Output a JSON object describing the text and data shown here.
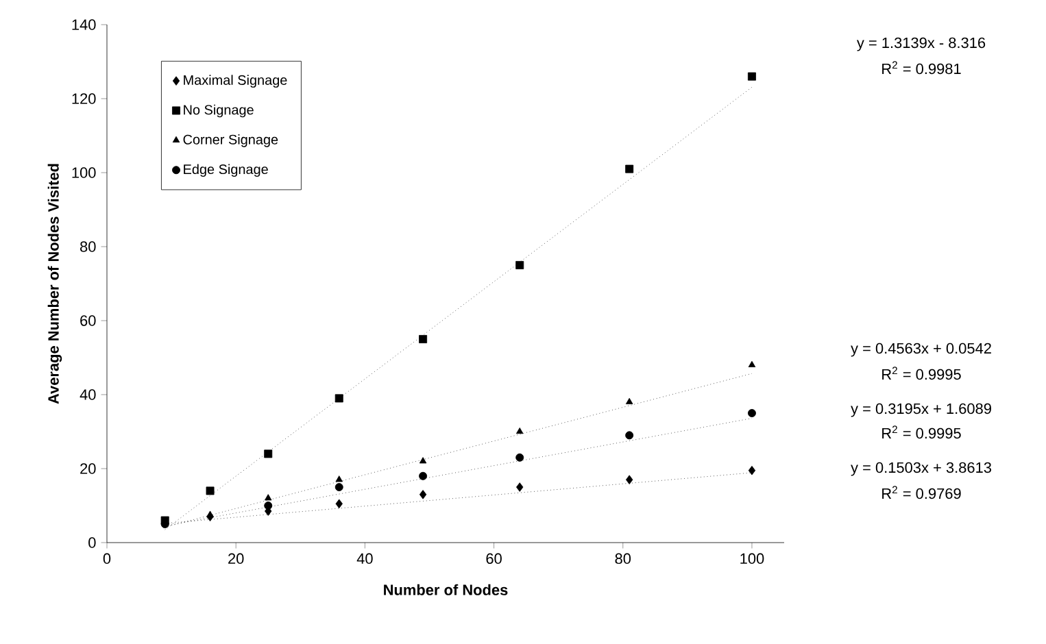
{
  "chart_data": {
    "type": "scatter",
    "xlabel": "Number of Nodes",
    "ylabel": "Average Number of Nodes Visited",
    "xlim": [
      0,
      105
    ],
    "ylim": [
      0,
      140
    ],
    "xticks": [
      0,
      20,
      40,
      60,
      80,
      100
    ],
    "yticks": [
      0,
      20,
      40,
      60,
      80,
      100,
      120,
      140
    ],
    "legend": "top left",
    "grid": false,
    "series": [
      {
        "name": "Maximal Signage",
        "marker": "diamond",
        "color": "#000000",
        "x": [
          16,
          25,
          36,
          49,
          64,
          81,
          100
        ],
        "values": [
          7,
          8.5,
          10.5,
          13,
          15,
          17,
          19.5
        ]
      },
      {
        "name": "No Signage",
        "marker": "square",
        "color": "#000000",
        "x": [
          9,
          16,
          25,
          36,
          49,
          64,
          81,
          100
        ],
        "values": [
          6,
          14,
          24,
          39,
          55,
          75,
          101,
          126
        ]
      },
      {
        "name": "Corner Signage",
        "marker": "triangle",
        "color": "#000000",
        "x": [
          16,
          25,
          36,
          49,
          64,
          81,
          100
        ],
        "values": [
          7.5,
          12,
          17,
          22,
          30,
          38,
          48
        ]
      },
      {
        "name": "Edge Signage",
        "marker": "circle",
        "color": "#000000",
        "x": [
          9,
          25,
          36,
          49,
          64,
          81,
          100
        ],
        "values": [
          5,
          10,
          15,
          18,
          23,
          29,
          35
        ]
      },
      {
        "type": "line",
        "marker": "none",
        "line_style": "dotted",
        "color": "#000000",
        "x": [
          9,
          100
        ],
        "values": [
          5.2,
          18.9
        ]
      },
      {
        "type": "line",
        "marker": "none",
        "line_style": "dotted",
        "color": "#000000",
        "x": [
          9,
          100
        ],
        "values": [
          3.5,
          123.1
        ]
      },
      {
        "type": "line",
        "marker": "none",
        "line_style": "dotted",
        "color": "#000000",
        "x": [
          9,
          100
        ],
        "values": [
          4.2,
          45.7
        ]
      },
      {
        "type": "line",
        "marker": "none",
        "line_style": "dotted",
        "color": "#000000",
        "x": [
          9,
          100
        ],
        "values": [
          4.5,
          33.6
        ]
      }
    ],
    "annotations": [
      "y = 1.3139x - 8.316",
      "R$^{2}$ = 0.9981",
      "y = 0.4563x + 0.0542",
      "R$^{2}$ = 0.9995",
      "y = 0.3195x + 1.6089",
      "R$^{2}$ = 0.9995",
      "y = 0.1503x + 3.8613",
      "R$^{2}$ = 0.9769"
    ]
  }
}
